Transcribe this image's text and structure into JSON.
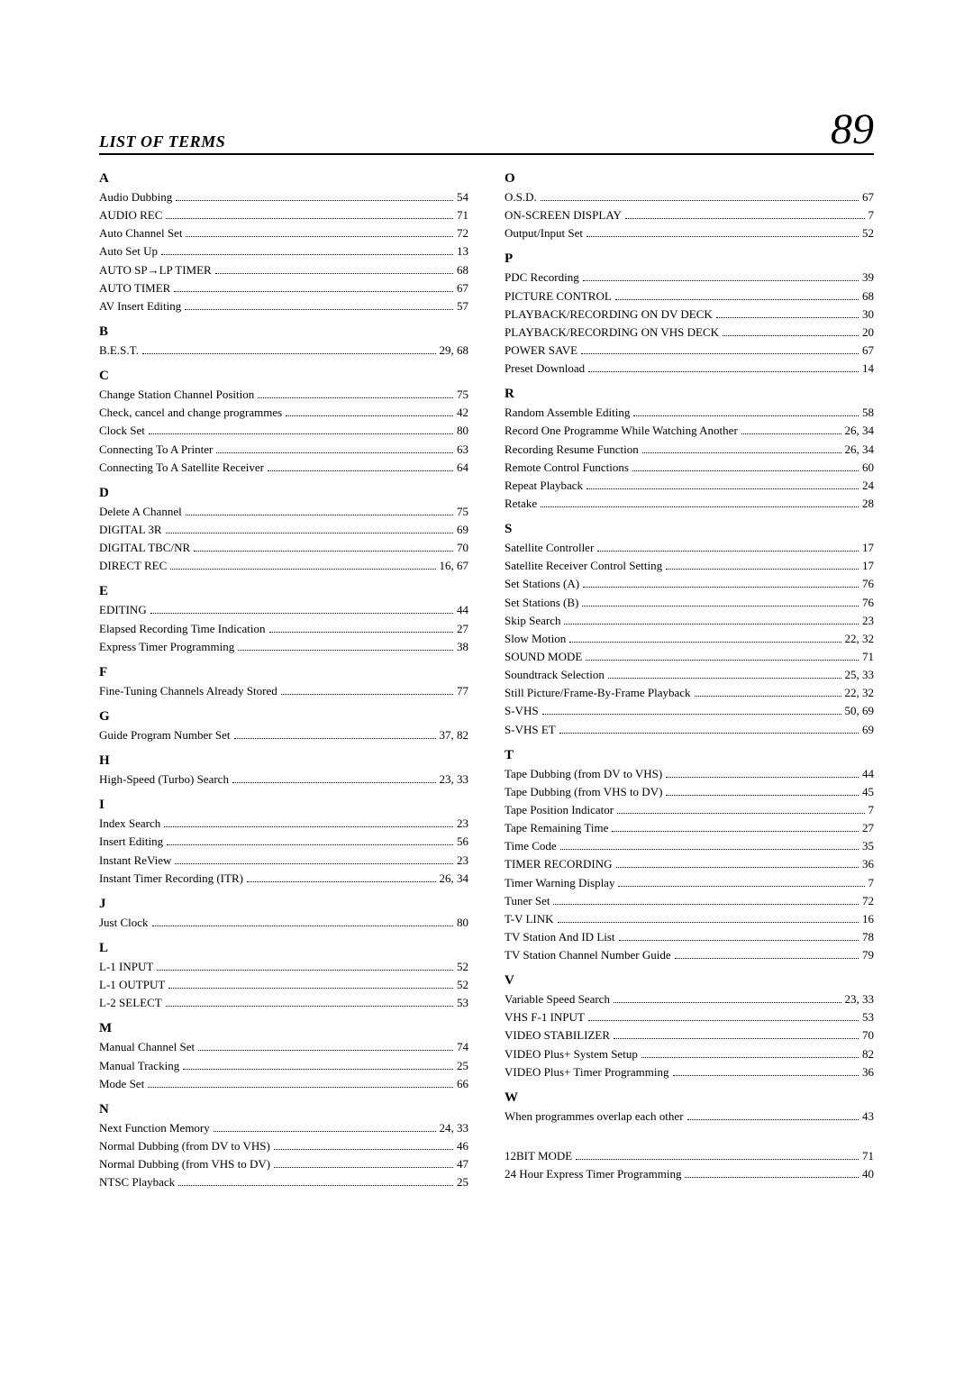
{
  "header": {
    "title": "LIST OF TERMS",
    "pageNumber": "89"
  },
  "left": [
    {
      "letter": "A",
      "entries": [
        {
          "term": "Audio Dubbing",
          "page": "54"
        },
        {
          "term": "AUDIO REC",
          "page": "71"
        },
        {
          "term": "Auto Channel Set",
          "page": "72"
        },
        {
          "term": "Auto Set Up",
          "page": "13"
        },
        {
          "term": "AUTO SP→LP TIMER",
          "page": "68"
        },
        {
          "term": "AUTO TIMER",
          "page": "67"
        },
        {
          "term": "AV Insert Editing",
          "page": "57"
        }
      ]
    },
    {
      "letter": "B",
      "entries": [
        {
          "term": "B.E.S.T.",
          "page": "29, 68"
        }
      ]
    },
    {
      "letter": "C",
      "entries": [
        {
          "term": "Change Station Channel Position",
          "page": "75"
        },
        {
          "term": "Check, cancel and change programmes",
          "page": "42"
        },
        {
          "term": "Clock Set",
          "page": "80"
        },
        {
          "term": "Connecting To A Printer",
          "page": "63"
        },
        {
          "term": "Connecting To A Satellite Receiver",
          "page": "64"
        }
      ]
    },
    {
      "letter": "D",
      "entries": [
        {
          "term": "Delete A Channel",
          "page": "75"
        },
        {
          "term": "DIGITAL 3R",
          "page": "69"
        },
        {
          "term": "DIGITAL TBC/NR",
          "page": "70"
        },
        {
          "term": "DIRECT REC",
          "page": "16, 67"
        }
      ]
    },
    {
      "letter": "E",
      "entries": [
        {
          "term": "EDITING",
          "page": "44"
        },
        {
          "term": "Elapsed Recording Time Indication",
          "page": "27"
        },
        {
          "term": "Express Timer Programming",
          "page": "38"
        }
      ]
    },
    {
      "letter": "F",
      "entries": [
        {
          "term": "Fine-Tuning Channels Already Stored",
          "page": "77"
        }
      ]
    },
    {
      "letter": "G",
      "entries": [
        {
          "term": "Guide Program Number Set",
          "page": "37, 82"
        }
      ]
    },
    {
      "letter": "H",
      "entries": [
        {
          "term": "High-Speed (Turbo) Search",
          "page": "23, 33"
        }
      ]
    },
    {
      "letter": "I",
      "entries": [
        {
          "term": "Index Search",
          "page": "23"
        },
        {
          "term": "Insert Editing",
          "page": "56"
        },
        {
          "term": "Instant ReView",
          "page": "23"
        },
        {
          "term": "Instant Timer Recording (ITR)",
          "page": "26, 34"
        }
      ]
    },
    {
      "letter": "J",
      "entries": [
        {
          "term": "Just Clock",
          "page": "80"
        }
      ]
    },
    {
      "letter": "L",
      "entries": [
        {
          "term": "L-1 INPUT",
          "page": "52"
        },
        {
          "term": "L-1 OUTPUT",
          "page": "52"
        },
        {
          "term": "L-2 SELECT",
          "page": "53"
        }
      ]
    },
    {
      "letter": "M",
      "entries": [
        {
          "term": "Manual Channel Set",
          "page": "74"
        },
        {
          "term": "Manual Tracking",
          "page": "25"
        },
        {
          "term": "Mode Set",
          "page": "66"
        }
      ]
    },
    {
      "letter": "N",
      "entries": [
        {
          "term": "Next Function Memory",
          "page": "24, 33"
        },
        {
          "term": "Normal Dubbing (from DV to VHS)",
          "page": "46"
        },
        {
          "term": "Normal Dubbing (from VHS to DV)",
          "page": "47"
        },
        {
          "term": "NTSC Playback",
          "page": "25"
        }
      ]
    }
  ],
  "right": [
    {
      "letter": "O",
      "entries": [
        {
          "term": "O.S.D.",
          "page": "67"
        },
        {
          "term": "ON-SCREEN DISPLAY",
          "page": "7"
        },
        {
          "term": "Output/Input Set",
          "page": "52"
        }
      ]
    },
    {
      "letter": "P",
      "entries": [
        {
          "term": "PDC Recording",
          "page": "39"
        },
        {
          "term": "PICTURE CONTROL",
          "page": "68"
        },
        {
          "term": "PLAYBACK/RECORDING ON DV DECK",
          "page": "30"
        },
        {
          "term": "PLAYBACK/RECORDING ON VHS DECK",
          "page": "20"
        },
        {
          "term": "POWER SAVE",
          "page": "67"
        },
        {
          "term": "Preset Download",
          "page": "14"
        }
      ]
    },
    {
      "letter": "R",
      "entries": [
        {
          "term": "Random Assemble Editing",
          "page": "58"
        },
        {
          "term": "Record One Programme While Watching Another",
          "page": "26, 34"
        },
        {
          "term": "Recording Resume Function",
          "page": "26, 34"
        },
        {
          "term": "Remote Control Functions",
          "page": "60"
        },
        {
          "term": "Repeat Playback",
          "page": "24"
        },
        {
          "term": "Retake",
          "page": "28"
        }
      ]
    },
    {
      "letter": "S",
      "entries": [
        {
          "term": "Satellite Controller",
          "page": "17"
        },
        {
          "term": "Satellite Receiver Control Setting",
          "page": "17"
        },
        {
          "term": "Set Stations (A)",
          "page": "76"
        },
        {
          "term": "Set Stations (B)",
          "page": "76"
        },
        {
          "term": "Skip Search",
          "page": "23"
        },
        {
          "term": "Slow Motion",
          "page": "22, 32"
        },
        {
          "term": "SOUND MODE",
          "page": "71"
        },
        {
          "term": "Soundtrack Selection",
          "page": "25, 33"
        },
        {
          "term": "Still Picture/Frame-By-Frame Playback",
          "page": "22, 32"
        },
        {
          "term": "S-VHS",
          "page": "50, 69"
        },
        {
          "term": "S-VHS ET",
          "page": "69"
        }
      ]
    },
    {
      "letter": "T",
      "entries": [
        {
          "term": "Tape Dubbing (from DV to VHS)",
          "page": "44"
        },
        {
          "term": "Tape Dubbing (from VHS to DV)",
          "page": "45"
        },
        {
          "term": "Tape Position Indicator",
          "page": "7"
        },
        {
          "term": "Tape Remaining Time",
          "page": "27"
        },
        {
          "term": "Time Code",
          "page": "35"
        },
        {
          "term": "TIMER RECORDING",
          "page": "36"
        },
        {
          "term": "Timer Warning Display",
          "page": "7"
        },
        {
          "term": "Tuner Set",
          "page": "72"
        },
        {
          "term": "T-V LINK",
          "page": "16"
        },
        {
          "term": "TV Station And ID List",
          "page": "78"
        },
        {
          "term": "TV Station Channel Number Guide",
          "page": "79"
        }
      ]
    },
    {
      "letter": "V",
      "entries": [
        {
          "term": "Variable Speed Search",
          "page": "23, 33"
        },
        {
          "term": "VHS F-1 INPUT",
          "page": "53"
        },
        {
          "term": "VIDEO STABILIZER",
          "page": "70"
        },
        {
          "term": "VIDEO Plus+® System Setup",
          "page": "82",
          "sup": true
        },
        {
          "term": "VIDEO Plus+® Timer Programming",
          "page": "36",
          "sup": true
        }
      ]
    },
    {
      "letter": "W",
      "entries": [
        {
          "term": "When programmes overlap each other",
          "page": "43"
        }
      ]
    },
    {
      "letter": "",
      "entries": [
        {
          "term": "12BIT MODE",
          "page": "71"
        },
        {
          "term": "24 Hour Express Timer Programming",
          "page": "40"
        }
      ]
    }
  ]
}
